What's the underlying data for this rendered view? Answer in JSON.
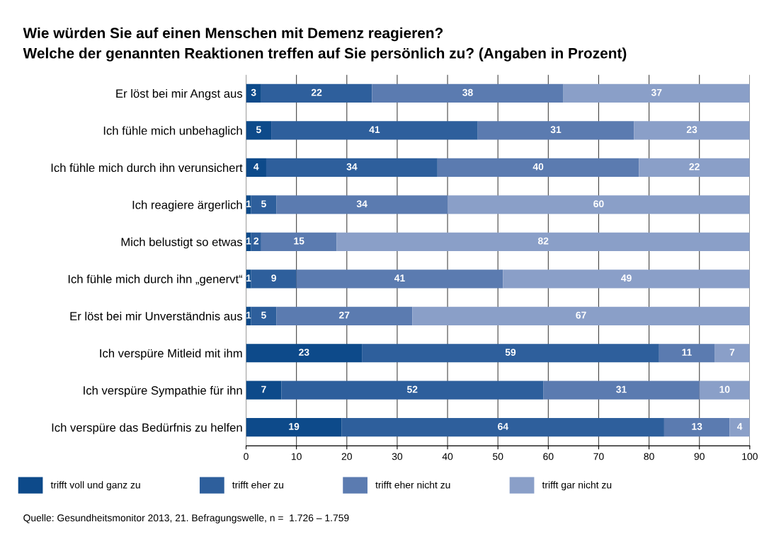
{
  "chart_data": {
    "type": "bar",
    "orientation": "horizontal",
    "stacked": true,
    "title": "Wie würden Sie auf einen Menschen mit Demenz reagieren?\nWelche der genannten Reaktionen treffen auf Sie persönlich zu? (Angaben in Prozent)",
    "categories": [
      "Er löst bei mir Angst aus",
      "Ich fühle mich unbehaglich",
      "Ich fühle mich durch ihn verunsichert",
      "Ich reagiere ärgerlich",
      "Mich belustigt so etwas",
      "Ich fühle mich durch ihn „genervt“",
      "Er löst bei mir Unverständnis aus",
      "Ich verspüre Mitleid mit ihm",
      "Ich verspüre Sympathie für ihn",
      "Ich verspüre das Bedürfnis zu helfen"
    ],
    "series": [
      {
        "name": "trifft voll und ganz zu",
        "color": "#0d4a8a",
        "values": [
          3,
          5,
          4,
          1,
          1,
          1,
          1,
          23,
          7,
          19
        ]
      },
      {
        "name": "trifft eher zu",
        "color": "#2e5f9c",
        "values": [
          22,
          41,
          34,
          5,
          2,
          9,
          5,
          59,
          52,
          64
        ]
      },
      {
        "name": "trifft eher nicht zu",
        "color": "#5b7bb0",
        "values": [
          38,
          31,
          40,
          34,
          15,
          41,
          27,
          11,
          31,
          13
        ]
      },
      {
        "name": "trifft gar nicht zu",
        "color": "#8a9fc8",
        "values": [
          37,
          23,
          22,
          60,
          82,
          49,
          67,
          7,
          10,
          4
        ]
      }
    ],
    "xlim": [
      0,
      100
    ],
    "xticks": [
      0,
      10,
      20,
      30,
      40,
      50,
      60,
      70,
      80,
      90,
      100
    ],
    "grid": "x",
    "legend": "bottom",
    "data_labels": true,
    "annotations": [
      "Quelle: Gesundheitsmonitor 2013, 21. Befragungswelle, n =  1.726 – 1.759"
    ]
  }
}
